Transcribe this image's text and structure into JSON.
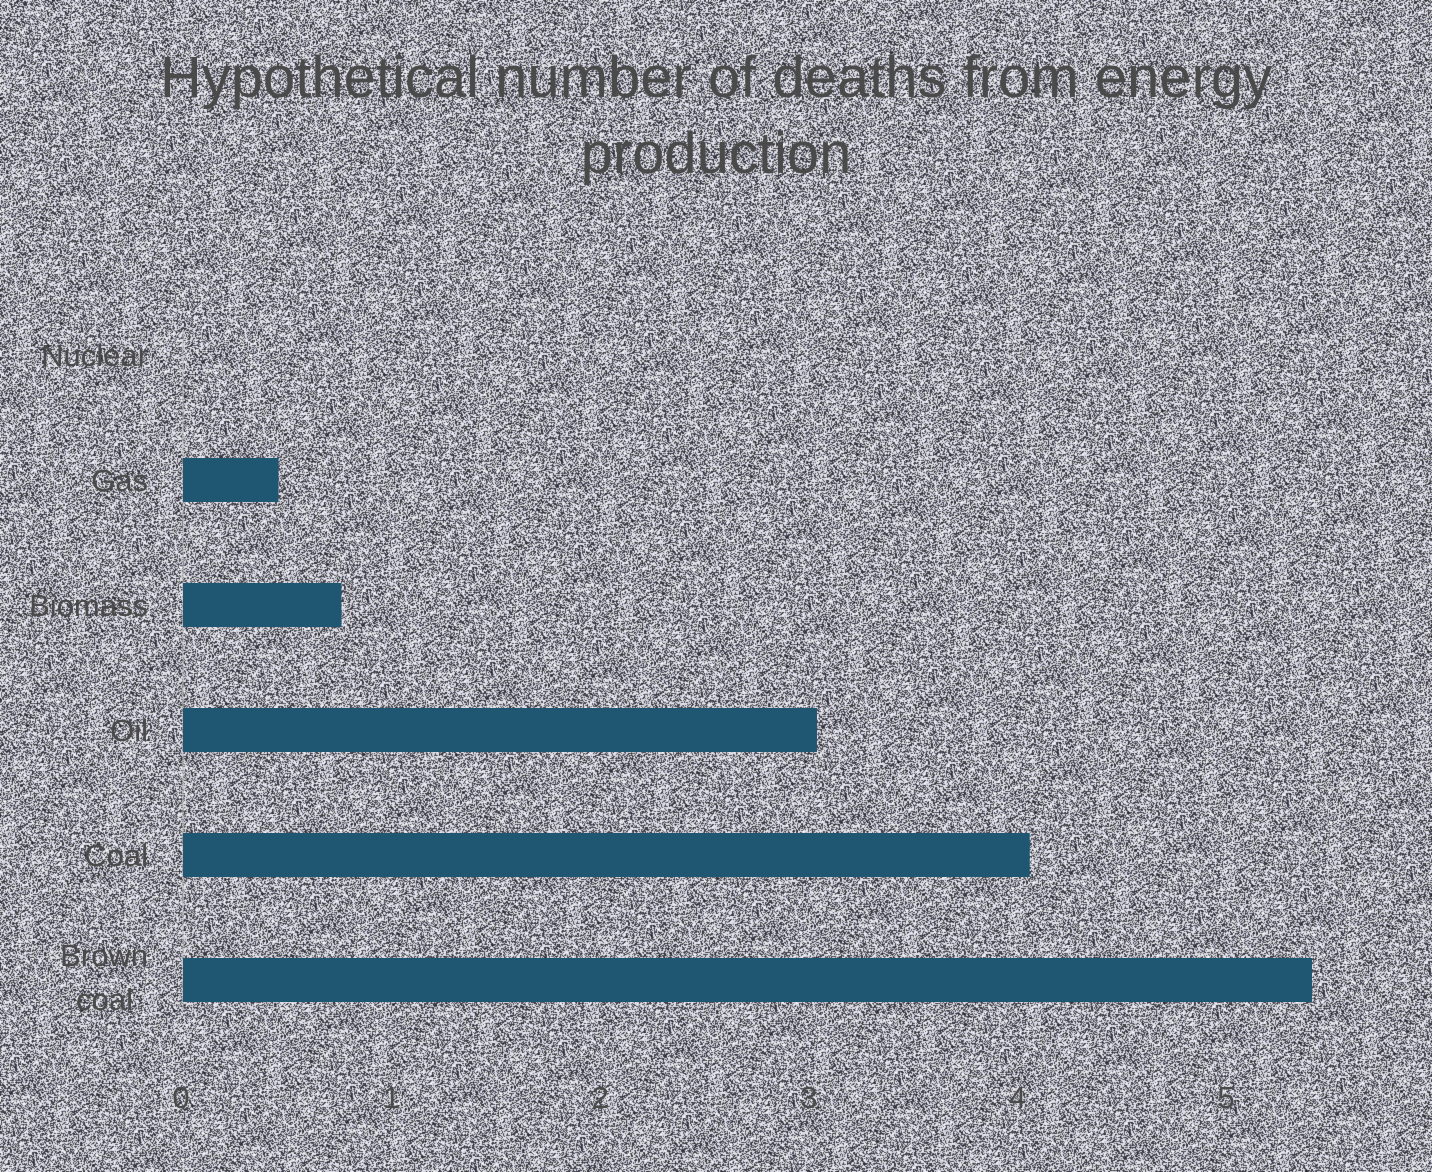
{
  "chart_data": {
    "type": "bar",
    "orientation": "horizontal",
    "title": "Hypothetical number of deaths from energy production",
    "categories": [
      "Nuclear",
      "Gas",
      "Biomass",
      "Oil",
      "Coal",
      "Brown coal"
    ],
    "values": [
      0,
      0.44,
      0.73,
      2.92,
      3.9,
      5.2
    ],
    "xticks": [
      "0",
      "1",
      "2",
      "3",
      "4",
      "5"
    ],
    "xlim": [
      0,
      5.2
    ],
    "xlabel": "",
    "ylabel": "",
    "grid": false,
    "legend": "none",
    "bar_color": "#1f5671",
    "text_color": "#4a4a4a"
  }
}
